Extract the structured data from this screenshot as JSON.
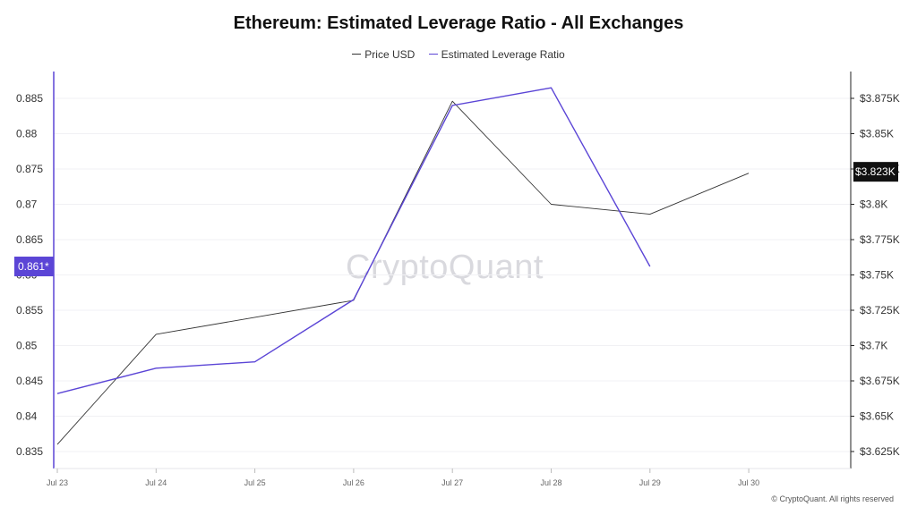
{
  "chart_data": {
    "type": "line",
    "title": "Ethereum: Estimated Leverage Ratio - All Exchanges",
    "x": [
      "Jul 23",
      "Jul 24",
      "Jul 25",
      "Jul 26",
      "Jul 27",
      "Jul 28",
      "Jul 29",
      "Jul 30"
    ],
    "series": [
      {
        "name": "Price USD",
        "axis": "right",
        "color": "#333333",
        "values": [
          3630,
          3708,
          3720,
          3732,
          3873,
          3800,
          3793,
          3822
        ]
      },
      {
        "name": "Estimated Leverage Ratio",
        "axis": "left",
        "color": "#5b45d6",
        "values": [
          0.8432,
          0.8468,
          0.8477,
          0.8565,
          0.884,
          0.8865,
          0.8612,
          null
        ]
      }
    ],
    "y_left": {
      "ticks": [
        "0.835",
        "0.84",
        "0.845",
        "0.85",
        "0.855",
        "0.86",
        "0.865",
        "0.87",
        "0.875",
        "0.88",
        "0.885"
      ],
      "range": [
        0.835,
        0.885
      ],
      "current_label": "0.861*"
    },
    "y_right": {
      "ticks": [
        "$3.625K",
        "$3.65K",
        "$3.675K",
        "$3.7K",
        "$3.725K",
        "$3.75K",
        "$3.775K",
        "$3.8K",
        "$3.825K",
        "$3.85K",
        "$3.875K"
      ],
      "range": [
        3625,
        3875
      ],
      "current_label": "$3.823K",
      "current_value": 3823
    },
    "legend_position": "top-center",
    "grid": true
  },
  "watermark": "CryptoQuant",
  "copyright": "© CryptoQuant. All rights reserved"
}
